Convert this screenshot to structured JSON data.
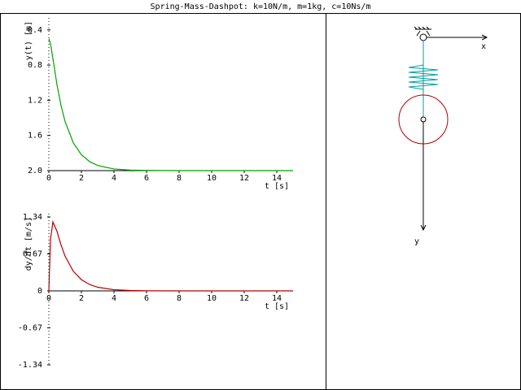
{
  "title": "Spring-Mass-Dashpot: k=10N/m, m=1kg, c=10Ns/m",
  "diagram": {
    "x_label": "x",
    "y_label": "y"
  },
  "chart_data": [
    {
      "type": "line",
      "ylabel": "y(t) [m]",
      "xlabel": "t [s]",
      "color": "#00a000",
      "x": [
        0,
        0.1,
        0.25,
        0.5,
        0.75,
        1,
        1.5,
        2,
        2.5,
        3,
        4,
        5,
        6,
        8,
        10,
        12,
        15
      ],
      "values": [
        0.5,
        0.555,
        0.727,
        1.024,
        1.262,
        1.443,
        1.683,
        1.82,
        1.897,
        1.942,
        1.981,
        1.994,
        1.998,
        2.0,
        2.0,
        2.0,
        2.0
      ],
      "xlim": [
        0,
        15
      ],
      "ylim": [
        2.0,
        0.3
      ],
      "xticks": [
        0,
        2,
        4,
        6,
        8,
        10,
        12,
        14
      ],
      "yticks": [
        0.4,
        0.8,
        1.2,
        1.6,
        {
          "value": 2.0,
          "label": "2.0"
        }
      ]
    },
    {
      "type": "line",
      "ylabel": "dy/dt [m/s]",
      "xlabel": "t [s]",
      "color": "#b00000",
      "x": [
        0,
        0.1,
        0.25,
        0.5,
        0.75,
        1,
        1.5,
        2,
        2.5,
        3,
        4,
        5,
        6,
        8,
        10,
        12,
        15
      ],
      "values": [
        0,
        0.933,
        1.25,
        1.079,
        0.829,
        0.627,
        0.357,
        0.203,
        0.116,
        0.066,
        0.021,
        0.007,
        0.002,
        0,
        0,
        0,
        0
      ],
      "xlim": [
        0,
        15
      ],
      "ylim": [
        -1.34,
        1.34
      ],
      "xticks": [
        0,
        2,
        4,
        6,
        8,
        10,
        12,
        14
      ],
      "yticks": [
        1.34,
        0.67,
        0,
        -0.67,
        -1.34
      ]
    }
  ]
}
